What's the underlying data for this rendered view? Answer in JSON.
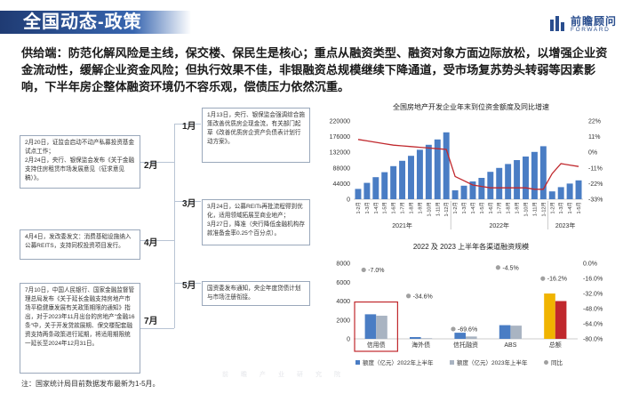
{
  "header": {
    "title": "全国动态-政策",
    "logo_cn": "前瞻顾问",
    "logo_en": "FORWARD"
  },
  "summary": "供给端：防范化解风险是主线，保交楼、保民生是核心；重点从融资类型、融资对象方面边际放松，以增强企业资金流动性，缓解企业资金风险；但执行效果不佳，非银融资总规模继续下降通道，受市场复苏势头转弱等因素影响，下半年房企整体融资环境仍不容乐观，偿债压力依然沉重。",
  "timeline": {
    "months": [
      "1月",
      "2月",
      "3月",
      "4月",
      "5月",
      "7月"
    ],
    "events": {
      "jan": "1月13日，央行、银保监会强调综合施策改善优质房企现金流，有关部门起草《改善优质房企资产负债表计划行动方案》。",
      "feb": "2月20日，证监会启动不动产私募投资基金试点工作；\n2月24日，央行、银保监会发布《关于金融支持住房租赁市场发展意见（征求意见稿）》。",
      "mar": "3月24日，公募REITs再批流程得到优化，适用领域拓展至商业地产；\n3月27日，降准（央行降低金融机构存款准备金率0.25个百分点）。",
      "apr": "4月4日，发改委发文：消费基础设施纳入公募REITS，支持同权投资项目发行。",
      "may": "国资委发布通知，央企年度贷债计划与市场注册衔接。",
      "jul": "7月10日，中国人民银行、国家金融监督管理总局发布《关于延长金融支持房地产市场平稳健康发展有关政策期限的通知》指出，对于2023年11月出台的房地产\"金融16条\"中，关于开发贷款展期、保交楼配套融资支持两条政策进行延期，将适用期限统一延长至2024年12月31日。"
    }
  },
  "chart1": {
    "title": "全国房地产开发企业年末到位资金额度及同比增速",
    "left_ticks": [
      "220000",
      "176000",
      "132000",
      "88000",
      "44000",
      "0"
    ],
    "right_ticks": [
      "22%",
      "11%",
      "0%",
      "-11%",
      "-22%",
      "-33%"
    ],
    "year_labels": [
      "2021年",
      "2022年",
      "2023年"
    ],
    "bar_color": "#4a7dc4",
    "line_color": "#c0282d"
  },
  "chart2": {
    "title": "2022 及 2023 上半年各渠道融资规模",
    "left_ticks": [
      "8000",
      "6000",
      "4000",
      "2000",
      "0"
    ],
    "right_ticks": [
      "0.0%",
      "-16.0%",
      "-32.0%",
      "-48.0%",
      "-64.0%",
      "-80.0%"
    ],
    "legend": [
      "额度（亿元）2022年上半年",
      "额度（亿元）2023年上半年",
      "同比"
    ],
    "colors": {
      "y2022": "#4a7dc4",
      "y2023": "#a9b4c2",
      "yoy": "#a0a0a0",
      "total2022": "#f0b400",
      "total2023": "#c0282d",
      "highlight": "#c0282d"
    }
  },
  "chart_data": [
    {
      "type": "bar",
      "title": "全国房地产开发企业年末到位资金额度及同比增速",
      "categories": [
        "1-2月",
        "1-3月",
        "1-4月",
        "1-5月",
        "1-6月",
        "1-7月",
        "1-8月",
        "1-9月",
        "1-10月",
        "1-11月",
        "1-12月",
        "1-2月",
        "1-3月",
        "1-4月",
        "1-5月",
        "1-6月",
        "1-7月",
        "1-8月",
        "1-9月",
        "1-10月",
        "1-11月",
        "1-12月",
        "1-2月",
        "1-3月",
        "1-4月",
        "1-5月"
      ],
      "series": [
        {
          "kind": "bar",
          "values": [
            29000,
            46000,
            62000,
            76000,
            93000,
            108000,
            122000,
            139000,
            153000,
            168000,
            188000,
            25000,
            38000,
            50000,
            60000,
            77000,
            88000,
            99000,
            110000,
            120000,
            133000,
            149000,
            22000,
            34000,
            44000,
            53000
          ]
        },
        {
          "kind": "line",
          "values": [
            0.09,
            0.08,
            0.07,
            0.06,
            0.05,
            0.045,
            0.04,
            0.035,
            0.03,
            0.025,
            0.02,
            -0.17,
            -0.2,
            -0.23,
            -0.24,
            -0.25,
            -0.25,
            -0.25,
            -0.25,
            -0.25,
            -0.26,
            -0.26,
            -0.15,
            -0.08,
            -0.09,
            -0.1
          ]
        }
      ],
      "ylim": [
        0,
        220000
      ],
      "y2lim": [
        -0.33,
        0.22
      ]
    },
    {
      "type": "bar",
      "title": "2022 及 2023 上半年各渠道融资规模",
      "categories": [
        "信用债",
        "海外债",
        "信托融资",
        "ABS",
        "总额"
      ],
      "series": [
        {
          "name": "额度（亿元）2022年上半年",
          "values": [
            2600,
            190,
            650,
            1450,
            4800
          ]
        },
        {
          "name": "额度（亿元）2023年上半年",
          "values": [
            2450,
            70,
            250,
            1400,
            4000
          ]
        },
        {
          "name": "同比",
          "values": [
            -0.07,
            -0.346,
            -0.696,
            -0.045,
            -0.162
          ]
        }
      ],
      "data_labels": [
        "-7.0%",
        "-34.6%",
        "-69.6%",
        "-4.5%",
        "-16.2%"
      ],
      "ylim": [
        0,
        8000
      ],
      "y2lim": [
        -0.8,
        0.0
      ]
    }
  ],
  "footnote": "注：国家统计局目前数据发布最新为1-5月。",
  "watermark": "前瞻产业研究院"
}
